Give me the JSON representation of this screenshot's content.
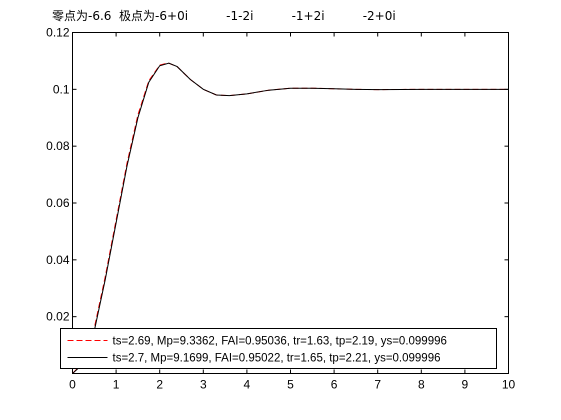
{
  "chart_data": {
    "type": "line",
    "title": "零点为-6.6  极点为-6+0i          -1-2i          -1+2i          -2+0i",
    "xlabel": "",
    "ylabel": "",
    "xlim": [
      0,
      10
    ],
    "ylim": [
      0.0,
      0.12
    ],
    "xticks": [
      "0",
      "1",
      "2",
      "3",
      "4",
      "5",
      "6",
      "7",
      "8",
      "9",
      "10"
    ],
    "yticks": [
      "0.02",
      "0.04",
      "0.06",
      "0.08",
      "0.1",
      "0.12"
    ],
    "grid": false,
    "legend_position": "bottom",
    "series": [
      {
        "name": "ts=2.69,  Mp=9.3362, FAI=0.95036, tr=1.63, tp=2.19, ys=0.099996",
        "color": "#ff0000",
        "style": "dashed",
        "x": [
          0,
          0.25,
          0.5,
          0.75,
          1.0,
          1.25,
          1.5,
          1.75,
          2.0,
          2.19,
          2.4,
          2.7,
          3.0,
          3.3,
          3.6,
          4.0,
          4.5,
          5.0,
          5.5,
          6.0,
          6.5,
          7.0,
          8.0,
          9.0,
          10.0
        ],
        "y": [
          0.0,
          0.004,
          0.016,
          0.034,
          0.054,
          0.074,
          0.091,
          0.103,
          0.1085,
          0.1093,
          0.108,
          0.1035,
          0.1,
          0.098,
          0.0978,
          0.0984,
          0.0997,
          0.1004,
          0.1004,
          0.1002,
          0.1,
          0.0999,
          0.1,
          0.1,
          0.1
        ]
      },
      {
        "name": "ts=2.7,  Mp=9.1699, FAI=0.95022, tr=1.65, tp=2.21, ys=0.099996",
        "color": "#000000",
        "style": "solid",
        "x": [
          0,
          0.25,
          0.5,
          0.75,
          1.0,
          1.25,
          1.5,
          1.75,
          2.0,
          2.21,
          2.4,
          2.7,
          3.0,
          3.3,
          3.6,
          4.0,
          4.5,
          5.0,
          5.5,
          6.0,
          6.5,
          7.0,
          8.0,
          9.0,
          10.0
        ],
        "y": [
          0.0,
          0.0035,
          0.015,
          0.033,
          0.053,
          0.073,
          0.09,
          0.1025,
          0.1083,
          0.1092,
          0.108,
          0.1035,
          0.1,
          0.098,
          0.0978,
          0.0984,
          0.0997,
          0.1004,
          0.1004,
          0.1002,
          0.1,
          0.0999,
          0.1,
          0.1,
          0.1
        ]
      }
    ]
  },
  "colors": {
    "axes_box": "#000000",
    "background": "#ffffff"
  }
}
